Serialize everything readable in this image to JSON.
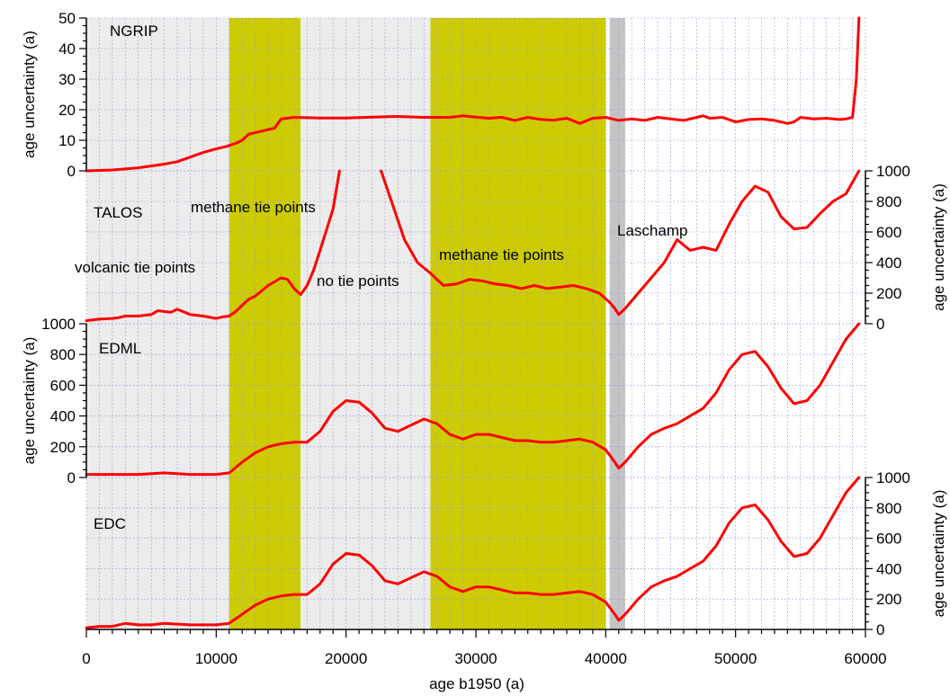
{
  "chart_data": {
    "type": "line",
    "xlabel": "age b1950 (a)",
    "xlim": [
      0,
      60000
    ],
    "xticks": [
      0,
      10000,
      20000,
      30000,
      40000,
      50000,
      60000
    ],
    "tick_labels": [
      "0",
      "10000",
      "20000",
      "30000",
      "40000",
      "50000",
      "60000"
    ],
    "grid": true,
    "colors": {
      "series": "#ff0000",
      "band_light": "#ececec",
      "band_methane": "#cccc00",
      "band_laschamp": "#c4c4c4",
      "grid": "#9c9cd6"
    },
    "shaded_bands": [
      {
        "label": "volcanic tie points",
        "x0": 0,
        "x1": 11000,
        "color": "band_light"
      },
      {
        "label": "methane tie points",
        "x0": 11000,
        "x1": 16500,
        "color": "band_methane"
      },
      {
        "label": "no tie points",
        "x0": 16500,
        "x1": 26500,
        "color": "band_light"
      },
      {
        "label": "methane tie points",
        "x0": 26500,
        "x1": 40000,
        "color": "band_methane"
      },
      {
        "label": "Laschamp",
        "x0": 40300,
        "x1": 41500,
        "color": "band_laschamp"
      }
    ],
    "band_labels": {
      "volcanic": "volcanic tie points",
      "methane1": "methane tie points",
      "notie": "no tie points",
      "methane2": "methane tie points",
      "laschamp": "Laschamp"
    },
    "panels": [
      {
        "name": "NGRIP",
        "ylabel": "age uncertainty (a)",
        "axis_side": "left",
        "ylim": [
          0,
          50
        ],
        "yticks": [
          0,
          10,
          20,
          30,
          40,
          50
        ],
        "x": [
          0,
          2000,
          4000,
          6000,
          7000,
          8000,
          9000,
          10000,
          10800,
          11500,
          12000,
          12500,
          13500,
          14500,
          15000,
          16000,
          18000,
          20000,
          22000,
          24000,
          26000,
          28000,
          29000,
          30000,
          31000,
          32000,
          33000,
          34000,
          35000,
          36000,
          37000,
          38000,
          39000,
          40000,
          41000,
          42000,
          43000,
          44000,
          45000,
          46000,
          47000,
          47500,
          48000,
          49000,
          50000,
          51000,
          52000,
          53000,
          54000,
          54500,
          55000,
          56000,
          57000,
          58000,
          58500,
          59000,
          59300,
          59500
        ],
        "values": [
          0,
          0.3,
          1,
          2.2,
          3,
          4.5,
          6,
          7.2,
          8,
          9,
          10,
          12,
          13,
          14,
          17,
          17.5,
          17.3,
          17.3,
          17.6,
          17.8,
          17.5,
          17.5,
          18,
          17.6,
          17.2,
          17.5,
          16.5,
          17.5,
          16.8,
          16.6,
          17.2,
          15.5,
          17.2,
          17.5,
          16.5,
          17,
          16.5,
          17.5,
          17,
          16.5,
          17.5,
          18,
          17.2,
          17.5,
          16,
          16.8,
          17,
          16.5,
          15.5,
          16,
          17.5,
          17,
          17.2,
          16.8,
          17,
          17.5,
          30,
          50
        ]
      },
      {
        "name": "TALOS",
        "ylabel": "age uncertainty (a)",
        "axis_side": "right",
        "ylim": [
          0,
          1000
        ],
        "yticks": [
          0,
          200,
          400,
          600,
          800,
          1000
        ],
        "segments": [
          {
            "x": [
              0,
              1000,
              2000,
              2500,
              3000,
              4000,
              5000,
              5500,
              6000,
              6500,
              7000,
              8000,
              9000,
              10000,
              10500,
              11000,
              11500,
              12000,
              12500,
              13000,
              14000,
              15000,
              15500,
              16000,
              16500,
              17000,
              17500,
              18000,
              19000,
              19500
            ],
            "values": [
              20,
              30,
              35,
              40,
              50,
              50,
              60,
              85,
              80,
              75,
              95,
              60,
              50,
              35,
              45,
              50,
              80,
              120,
              160,
              180,
              250,
              300,
              290,
              230,
              190,
              250,
              350,
              480,
              750,
              1000
            ]
          },
          {
            "x": [
              22700,
              23500,
              24500,
              25500,
              26500,
              27500,
              28500,
              29500,
              30500,
              31500,
              32500,
              33500,
              34500,
              35500,
              36500,
              37500,
              38500,
              39500,
              40300,
              40700,
              41000,
              41500,
              42500,
              43500,
              44500,
              45500,
              46500,
              47500,
              48500,
              49500,
              50500,
              51500,
              52500,
              53500,
              54500,
              55500,
              56500,
              57500,
              58500,
              59500
            ],
            "values": [
              1000,
              800,
              550,
              400,
              330,
              250,
              260,
              290,
              280,
              260,
              250,
              230,
              250,
              230,
              240,
              250,
              230,
              200,
              140,
              100,
              60,
              100,
              200,
              300,
              400,
              550,
              480,
              500,
              480,
              650,
              800,
              900,
              860,
              700,
              620,
              630,
              720,
              800,
              850,
              1000
            ]
          }
        ]
      },
      {
        "name": "EDML",
        "ylabel": "age uncertainty (a)",
        "axis_side": "left",
        "ylim": [
          0,
          1000
        ],
        "yticks": [
          0,
          200,
          400,
          600,
          800,
          1000
        ],
        "x": [
          0,
          2000,
          4000,
          6000,
          8000,
          10000,
          11000,
          12000,
          13000,
          14000,
          15000,
          16000,
          17000,
          18000,
          19000,
          20000,
          21000,
          22000,
          23000,
          24000,
          25000,
          26000,
          27000,
          28000,
          29000,
          30000,
          31000,
          32000,
          33000,
          34000,
          35000,
          36000,
          37000,
          38000,
          39000,
          40000,
          40700,
          41000,
          41500,
          42500,
          43500,
          44500,
          45500,
          46500,
          47500,
          48500,
          49500,
          50500,
          51500,
          52500,
          53500,
          54500,
          55500,
          56500,
          57500,
          58500,
          59500
        ],
        "values": [
          20,
          20,
          20,
          30,
          20,
          20,
          30,
          100,
          160,
          200,
          220,
          230,
          230,
          300,
          430,
          500,
          490,
          420,
          320,
          300,
          340,
          380,
          350,
          280,
          250,
          280,
          280,
          260,
          240,
          240,
          230,
          230,
          240,
          250,
          230,
          180,
          100,
          60,
          100,
          200,
          280,
          320,
          350,
          400,
          450,
          550,
          700,
          800,
          820,
          720,
          580,
          480,
          500,
          600,
          750,
          900,
          1000
        ]
      },
      {
        "name": "EDC",
        "ylabel": "age uncertainty (a)",
        "axis_side": "right",
        "ylim": [
          0,
          1000
        ],
        "yticks": [
          0,
          200,
          400,
          600,
          800,
          1000
        ],
        "x": [
          0,
          1000,
          2000,
          3000,
          4000,
          5000,
          6000,
          8000,
          9000,
          10000,
          11000,
          12000,
          13000,
          14000,
          15000,
          16000,
          17000,
          18000,
          19000,
          20000,
          21000,
          22000,
          23000,
          24000,
          25000,
          26000,
          27000,
          28000,
          29000,
          30000,
          31000,
          32000,
          33000,
          34000,
          35000,
          36000,
          37000,
          38000,
          39000,
          40000,
          40700,
          41000,
          41500,
          42500,
          43500,
          44500,
          45500,
          46500,
          47500,
          48500,
          49500,
          50500,
          51500,
          52500,
          53500,
          54500,
          55500,
          56500,
          57500,
          58500,
          59500
        ],
        "values": [
          10,
          20,
          20,
          40,
          30,
          30,
          40,
          30,
          30,
          30,
          40,
          100,
          160,
          200,
          220,
          230,
          230,
          300,
          430,
          500,
          490,
          420,
          320,
          300,
          340,
          380,
          350,
          280,
          250,
          280,
          280,
          260,
          240,
          240,
          230,
          230,
          240,
          250,
          230,
          180,
          100,
          60,
          100,
          200,
          280,
          320,
          350,
          400,
          450,
          550,
          700,
          800,
          820,
          720,
          580,
          480,
          500,
          600,
          750,
          900,
          1000
        ]
      }
    ]
  }
}
